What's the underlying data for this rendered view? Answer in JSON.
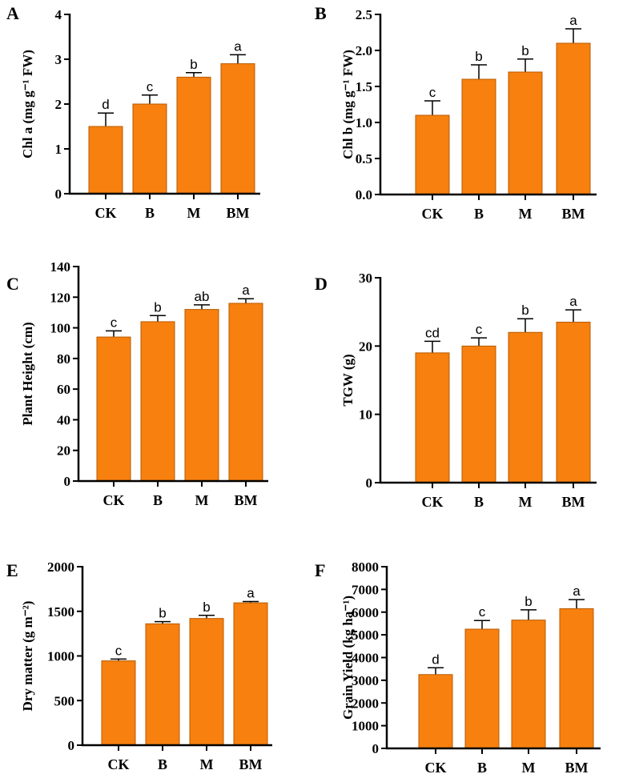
{
  "colors": {
    "bar": "#F7800F",
    "bar_edge": "#B85A00",
    "axis": "#000000"
  },
  "chart_data": [
    {
      "type": "bar",
      "panel": "A",
      "ylabel": "Chl a (mg g⁻¹ FW)",
      "categories": [
        "CK",
        "B",
        "M",
        "BM"
      ],
      "values": [
        1.5,
        2.0,
        2.6,
        2.9
      ],
      "errors": [
        0.3,
        0.2,
        0.1,
        0.2
      ],
      "letters": [
        "d",
        "c",
        "b",
        "a"
      ],
      "ylim": [
        0,
        4
      ],
      "yticks": [
        0,
        1,
        2,
        3,
        4
      ],
      "ytick_labels": [
        "0",
        "1",
        "2",
        "3",
        "4"
      ]
    },
    {
      "type": "bar",
      "panel": "B",
      "ylabel": "Chl b (mg g⁻¹ FW)",
      "categories": [
        "CK",
        "B",
        "M",
        "BM"
      ],
      "values": [
        1.1,
        1.6,
        1.7,
        2.1
      ],
      "errors": [
        0.2,
        0.2,
        0.18,
        0.2
      ],
      "letters": [
        "c",
        "b",
        "b",
        "a"
      ],
      "ylim": [
        0,
        2.5
      ],
      "yticks": [
        0,
        0.5,
        1,
        1.5,
        2,
        2.5
      ],
      "ytick_labels": [
        "0.0",
        "0.5",
        "1.0",
        "1.5",
        "2.0",
        "2.5"
      ]
    },
    {
      "type": "bar",
      "panel": "C",
      "ylabel": "Plant Height (cm)",
      "categories": [
        "CK",
        "B",
        "M",
        "BM"
      ],
      "values": [
        94,
        104,
        112,
        116
      ],
      "errors": [
        4,
        4,
        3,
        3
      ],
      "letters": [
        "c",
        "b",
        "ab",
        "a"
      ],
      "ylim": [
        0,
        140
      ],
      "yticks": [
        0,
        20,
        40,
        60,
        80,
        100,
        120,
        140
      ],
      "ytick_labels": [
        "0",
        "20",
        "40",
        "60",
        "80",
        "100",
        "120",
        "140"
      ]
    },
    {
      "type": "bar",
      "panel": "D",
      "ylabel": "TGW (g)",
      "categories": [
        "CK",
        "B",
        "M",
        "BM"
      ],
      "values": [
        19,
        20,
        22,
        23.5
      ],
      "errors": [
        1.7,
        1.2,
        2,
        1.8
      ],
      "letters": [
        "cd",
        "c",
        "b",
        "a"
      ],
      "ylim": [
        0,
        30
      ],
      "yticks": [
        0,
        10,
        20,
        30
      ],
      "ytick_labels": [
        "0",
        "10",
        "20",
        "30"
      ]
    },
    {
      "type": "bar",
      "panel": "E",
      "ylabel": "Dry matter (g m⁻²)",
      "categories": [
        "CK",
        "B",
        "M",
        "BM"
      ],
      "values": [
        945,
        1360,
        1420,
        1595
      ],
      "errors": [
        20,
        25,
        35,
        15
      ],
      "letters": [
        "c",
        "b",
        "b",
        "a"
      ],
      "ylim": [
        0,
        2000
      ],
      "yticks": [
        0,
        500,
        1000,
        1500,
        2000
      ],
      "ytick_labels": [
        "0",
        "500",
        "1000",
        "1500",
        "2000"
      ]
    },
    {
      "type": "bar",
      "panel": "F",
      "ylabel": "Grain Yield (kg ha⁻¹)",
      "categories": [
        "CK",
        "B",
        "M",
        "BM"
      ],
      "values": [
        3250,
        5250,
        5650,
        6150
      ],
      "errors": [
        300,
        380,
        450,
        400
      ],
      "letters": [
        "d",
        "c",
        "b",
        "a"
      ],
      "ylim": [
        0,
        8000
      ],
      "yticks": [
        0,
        1000,
        2000,
        3000,
        4000,
        5000,
        6000,
        7000,
        8000
      ],
      "ytick_labels": [
        "0",
        "1000",
        "2000",
        "3000",
        "4000",
        "5000",
        "6000",
        "7000",
        "8000"
      ]
    }
  ]
}
